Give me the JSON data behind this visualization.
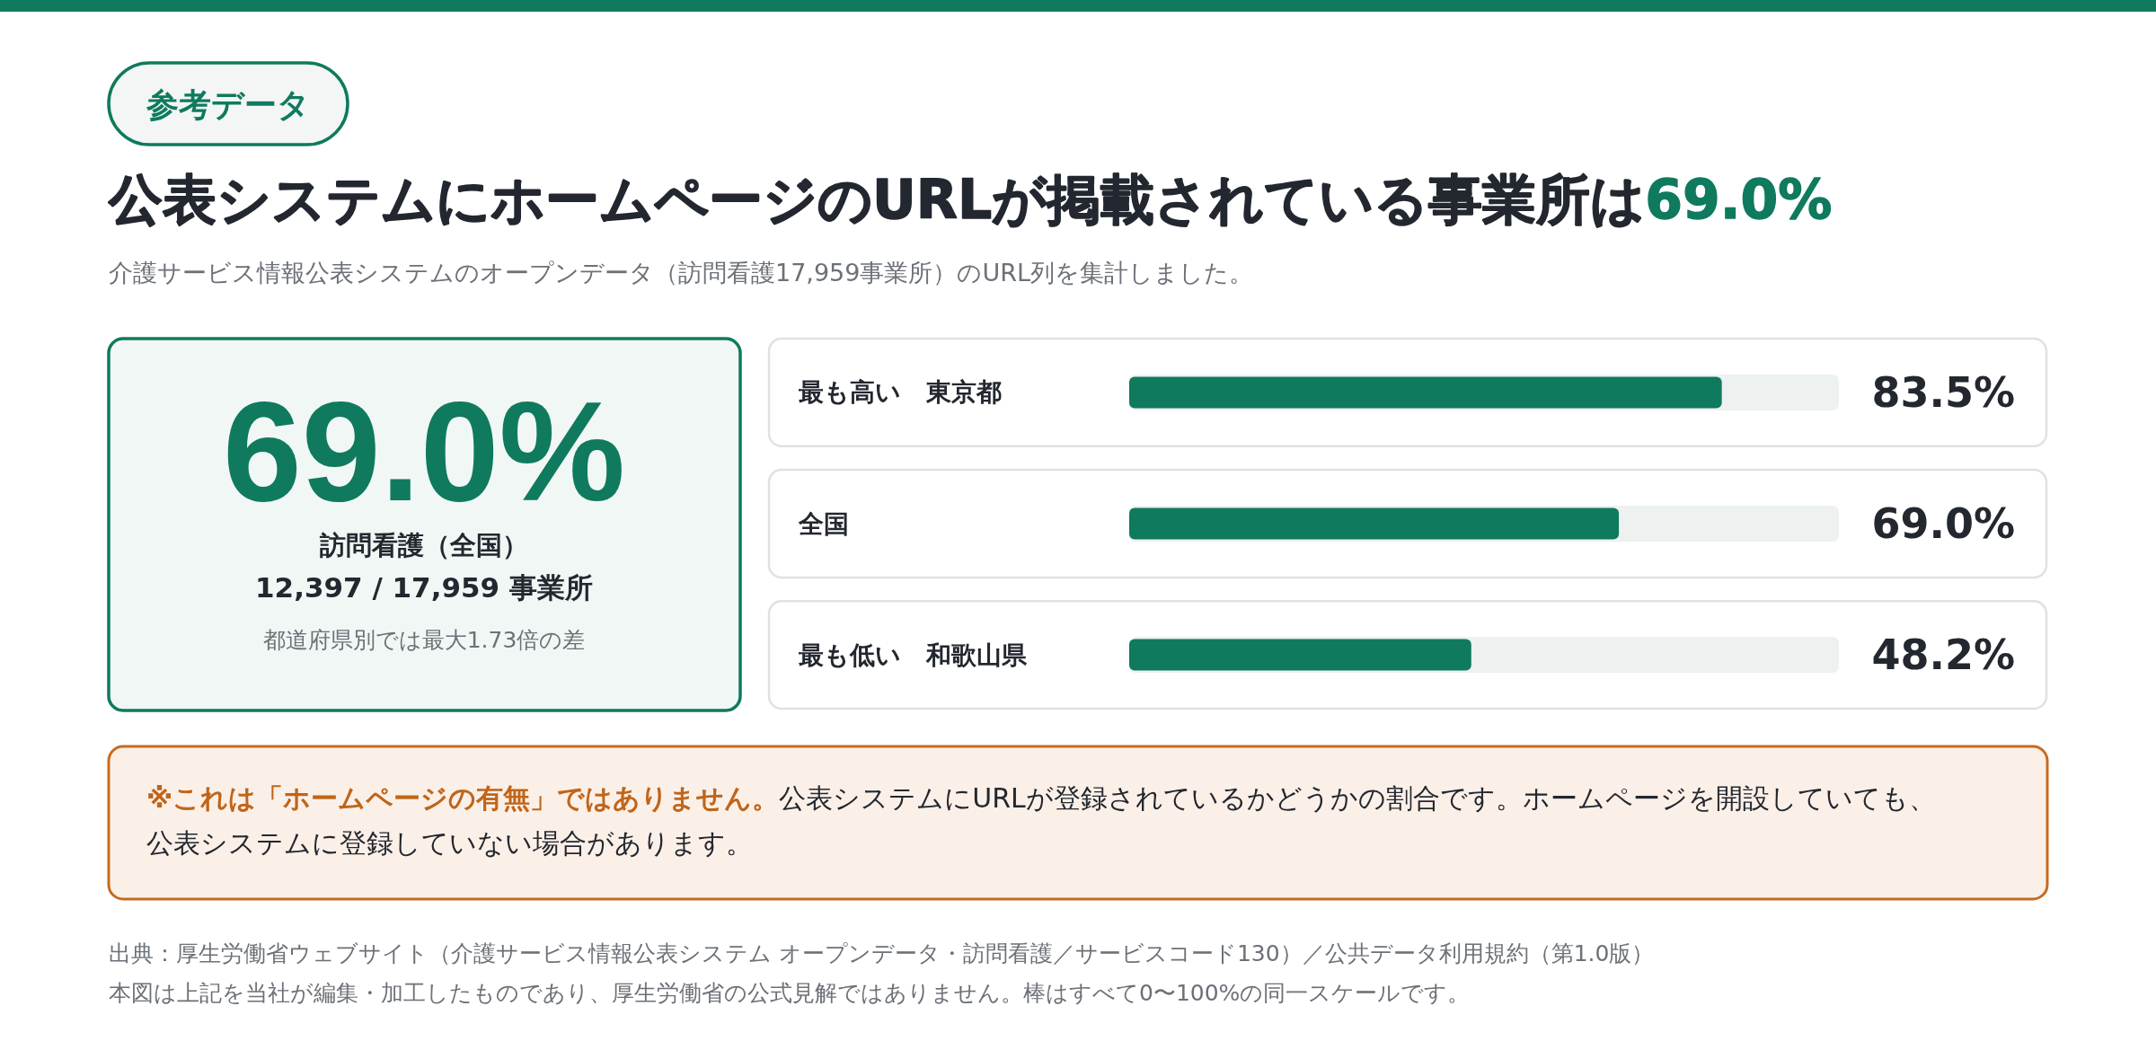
{
  "chart_data": {
    "type": "bar",
    "orientation": "horizontal",
    "title": "公表システムにホームページのURLが掲載されている事業所は69.0%",
    "subtitle": "介護サービス情報公表システムのオープンデータ（訪問看護17,959事業所）のURL列を集計しました。",
    "categories": [
      "最も高い　東京都",
      "全国",
      "最も低い　和歌山県"
    ],
    "values": [
      83.5,
      69.0,
      48.2
    ],
    "value_labels": [
      "83.5%",
      "69.0%",
      "48.2%"
    ],
    "color": "#0f7a5e",
    "xlim": [
      0,
      100
    ],
    "bands": [
      {
        "axis": "x",
        "from": 0,
        "to": 100,
        "color": "#edf1f0"
      }
    ],
    "annotations": [
      "参考データ",
      "69.0%",
      "訪問看護（全国）",
      "12,397 / 17,959 事業所",
      "都道府県別では最大1.73倍の差",
      "※これは「ホームページの有無」ではありません。",
      "公表システムにURLが登録されているかどうかの割合です。ホームページを開設していても、公表システムに登録していない場合があります。",
      "出典：厚生労働省ウェブサイト（介護サービス情報公表システム オープンデータ・訪問看護／サービスコード130）／公共データ利用規約（第1.0版）",
      "本図は上記を当社が編集・加工したものであり、厚生労働省の公式見解ではありません。棒はすべて0〜100%の同一スケールです。"
    ]
  }
}
